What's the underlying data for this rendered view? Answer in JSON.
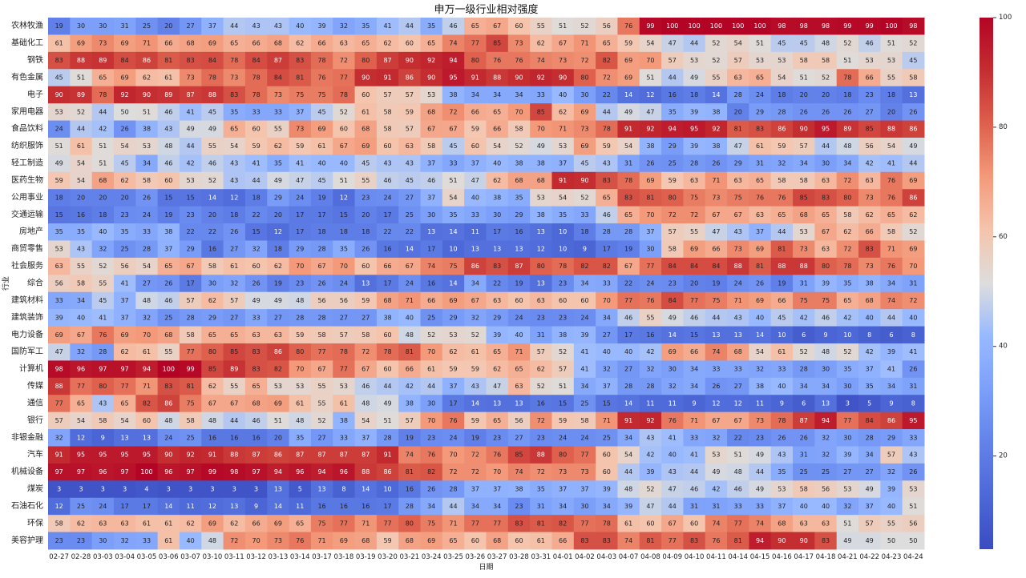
{
  "chart_data": {
    "type": "heatmap",
    "title": "申万一级行业相对强度",
    "xlabel": "日期",
    "ylabel": "行业",
    "colormap": "coolwarm",
    "vmin": 0,
    "vmax": 100,
    "colorbar_ticks": [
      20,
      40,
      60,
      80,
      100
    ],
    "x": [
      "02-27",
      "02-28",
      "03-03",
      "03-04",
      "03-05",
      "03-06",
      "03-07",
      "03-10",
      "03-11",
      "03-12",
      "03-13",
      "03-14",
      "03-17",
      "03-18",
      "03-19",
      "03-20",
      "03-21",
      "03-24",
      "03-25",
      "03-26",
      "03-27",
      "03-28",
      "03-31",
      "04-01",
      "04-02",
      "04-03",
      "04-07",
      "04-08",
      "04-09",
      "04-10",
      "04-11",
      "04-14",
      "04-15",
      "04-16",
      "04-17",
      "04-18",
      "04-21",
      "04-22",
      "04-23",
      "04-24"
    ],
    "y": [
      "农林牧渔",
      "基础化工",
      "钢铁",
      "有色金属",
      "电子",
      "家用电器",
      "食品饮料",
      "纺织服饰",
      "轻工制造",
      "医药生物",
      "公用事业",
      "交通运输",
      "房地产",
      "商贸零售",
      "社会服务",
      "综合",
      "建筑材料",
      "建筑装饰",
      "电力设备",
      "国防军工",
      "计算机",
      "传媒",
      "通信",
      "银行",
      "非银金融",
      "汽车",
      "机械设备",
      "煤炭",
      "石油石化",
      "环保",
      "美容护理"
    ],
    "values": [
      [
        19,
        30,
        30,
        31,
        25,
        20,
        27,
        37,
        44,
        43,
        43,
        40,
        39,
        32,
        35,
        41,
        44,
        35,
        46,
        65,
        67,
        60,
        55,
        51,
        52,
        56,
        76,
        99,
        100,
        100,
        100,
        100,
        100,
        98,
        98,
        98,
        99,
        99,
        100,
        98
      ],
      [
        61,
        69,
        73,
        69,
        71,
        66,
        68,
        69,
        65,
        66,
        68,
        62,
        66,
        63,
        65,
        62,
        60,
        65,
        74,
        77,
        85,
        73,
        62,
        67,
        71,
        65,
        59,
        54,
        47,
        44,
        52,
        54,
        51,
        45,
        45,
        48,
        52,
        46,
        51,
        52
      ],
      [
        83,
        88,
        89,
        84,
        86,
        81,
        83,
        84,
        78,
        84,
        87,
        83,
        78,
        72,
        80,
        87,
        90,
        92,
        94,
        80,
        76,
        76,
        74,
        73,
        72,
        82,
        69,
        70,
        57,
        53,
        52,
        57,
        53,
        53,
        58,
        58,
        51,
        53,
        53,
        45
      ],
      [
        45,
        51,
        65,
        69,
        62,
        61,
        73,
        78,
        73,
        78,
        84,
        81,
        76,
        77,
        90,
        91,
        86,
        90,
        95,
        91,
        88,
        90,
        92,
        90,
        80,
        72,
        69,
        51,
        44,
        49,
        55,
        63,
        65,
        54,
        51,
        52,
        78,
        66,
        55,
        58
      ],
      [
        90,
        89,
        78,
        92,
        90,
        89,
        87,
        88,
        83,
        78,
        73,
        75,
        75,
        78,
        60,
        57,
        57,
        53,
        38,
        34,
        34,
        34,
        33,
        40,
        30,
        22,
        14,
        12,
        16,
        18,
        14,
        28,
        24,
        18,
        20,
        20,
        18,
        23,
        18,
        13
      ],
      [
        53,
        52,
        44,
        50,
        51,
        46,
        41,
        45,
        35,
        33,
        33,
        37,
        45,
        52,
        61,
        58,
        59,
        68,
        72,
        66,
        65,
        70,
        85,
        62,
        69,
        44,
        49,
        47,
        35,
        39,
        38,
        20,
        29,
        28,
        26,
        26,
        26,
        27,
        20,
        26
      ],
      [
        24,
        44,
        42,
        26,
        38,
        43,
        49,
        49,
        65,
        60,
        55,
        73,
        69,
        60,
        68,
        58,
        57,
        67,
        67,
        59,
        66,
        58,
        70,
        71,
        73,
        78,
        91,
        92,
        94,
        95,
        92,
        81,
        83,
        86,
        90,
        95,
        89,
        85,
        88,
        86
      ],
      [
        51,
        61,
        51,
        54,
        53,
        48,
        44,
        55,
        54,
        59,
        62,
        59,
        61,
        67,
        69,
        60,
        63,
        58,
        45,
        60,
        54,
        52,
        49,
        53,
        69,
        59,
        54,
        38,
        29,
        39,
        38,
        47,
        61,
        59,
        57,
        44,
        48,
        56,
        54,
        49
      ],
      [
        49,
        54,
        51,
        45,
        34,
        46,
        42,
        46,
        43,
        41,
        35,
        41,
        40,
        40,
        45,
        43,
        43,
        37,
        33,
        37,
        40,
        38,
        38,
        37,
        45,
        43,
        31,
        26,
        25,
        28,
        26,
        29,
        31,
        32,
        34,
        30,
        34,
        42,
        41,
        44
      ],
      [
        59,
        54,
        68,
        62,
        58,
        60,
        53,
        52,
        43,
        44,
        49,
        47,
        45,
        51,
        55,
        46,
        45,
        46,
        51,
        47,
        62,
        68,
        68,
        91,
        90,
        83,
        78,
        69,
        59,
        63,
        71,
        63,
        65,
        58,
        58,
        63,
        72,
        63,
        76,
        69
      ],
      [
        18,
        20,
        20,
        20,
        26,
        15,
        15,
        14,
        12,
        18,
        29,
        24,
        19,
        12,
        23,
        24,
        27,
        37,
        54,
        40,
        38,
        35,
        53,
        54,
        52,
        65,
        83,
        81,
        80,
        75,
        73,
        75,
        76,
        76,
        85,
        83,
        80,
        73,
        76,
        86
      ],
      [
        15,
        16,
        18,
        23,
        24,
        19,
        23,
        20,
        18,
        22,
        20,
        17,
        17,
        15,
        20,
        17,
        25,
        30,
        35,
        33,
        30,
        29,
        38,
        35,
        33,
        46,
        65,
        70,
        72,
        72,
        67,
        67,
        63,
        65,
        68,
        65,
        58,
        62,
        65,
        62
      ],
      [
        35,
        35,
        40,
        35,
        33,
        38,
        22,
        22,
        26,
        15,
        12,
        17,
        18,
        18,
        18,
        22,
        22,
        13,
        14,
        11,
        17,
        16,
        13,
        10,
        18,
        28,
        28,
        37,
        57,
        55,
        47,
        43,
        37,
        44,
        53,
        67,
        62,
        66,
        58,
        52
      ],
      [
        53,
        43,
        32,
        25,
        28,
        37,
        29,
        16,
        27,
        32,
        18,
        29,
        28,
        35,
        26,
        16,
        14,
        17,
        10,
        13,
        13,
        13,
        12,
        10,
        9,
        17,
        19,
        30,
        58,
        69,
        66,
        73,
        69,
        81,
        73,
        63,
        72,
        83,
        71,
        69
      ],
      [
        63,
        55,
        52,
        56,
        54,
        65,
        67,
        58,
        61,
        60,
        62,
        70,
        67,
        70,
        60,
        66,
        67,
        74,
        75,
        86,
        83,
        87,
        80,
        78,
        82,
        82,
        67,
        77,
        84,
        84,
        84,
        88,
        81,
        88,
        88,
        80,
        78,
        73,
        76,
        70
      ],
      [
        56,
        58,
        55,
        41,
        27,
        26,
        17,
        30,
        32,
        26,
        19,
        23,
        26,
        24,
        13,
        17,
        24,
        16,
        14,
        34,
        22,
        19,
        13,
        23,
        34,
        33,
        22,
        24,
        23,
        20,
        19,
        24,
        26,
        19,
        31,
        39,
        35,
        38,
        34,
        31
      ],
      [
        33,
        34,
        45,
        37,
        48,
        46,
        57,
        62,
        57,
        49,
        49,
        48,
        56,
        56,
        59,
        68,
        71,
        66,
        69,
        67,
        63,
        60,
        63,
        60,
        60,
        70,
        77,
        76,
        84,
        77,
        75,
        71,
        69,
        66,
        75,
        75,
        65,
        68,
        74,
        72
      ],
      [
        39,
        40,
        41,
        37,
        32,
        25,
        28,
        29,
        27,
        33,
        27,
        28,
        28,
        27,
        27,
        38,
        40,
        25,
        29,
        32,
        29,
        24,
        23,
        23,
        24,
        34,
        46,
        55,
        49,
        46,
        44,
        43,
        40,
        45,
        42,
        46,
        42,
        40,
        44,
        40
      ],
      [
        69,
        67,
        76,
        69,
        70,
        68,
        58,
        65,
        65,
        63,
        63,
        59,
        58,
        57,
        58,
        60,
        48,
        52,
        53,
        52,
        39,
        40,
        31,
        38,
        39,
        27,
        17,
        16,
        14,
        15,
        13,
        13,
        14,
        10,
        6,
        9,
        10,
        8,
        6,
        8
      ],
      [
        47,
        32,
        28,
        62,
        61,
        55,
        77,
        80,
        85,
        83,
        86,
        80,
        77,
        78,
        72,
        78,
        81,
        70,
        62,
        61,
        65,
        71,
        57,
        52,
        41,
        40,
        40,
        42,
        69,
        66,
        74,
        68,
        54,
        61,
        52,
        48,
        52,
        42,
        39,
        41
      ],
      [
        98,
        96,
        97,
        97,
        94,
        100,
        99,
        85,
        89,
        83,
        82,
        70,
        67,
        77,
        67,
        60,
        66,
        61,
        59,
        59,
        62,
        65,
        62,
        57,
        41,
        32,
        27,
        32,
        30,
        34,
        33,
        33,
        32,
        33,
        28,
        30,
        35,
        37,
        41,
        26
      ],
      [
        88,
        77,
        80,
        77,
        71,
        83,
        81,
        62,
        55,
        65,
        53,
        53,
        55,
        53,
        46,
        44,
        42,
        44,
        37,
        43,
        47,
        63,
        52,
        51,
        34,
        37,
        28,
        28,
        32,
        34,
        26,
        27,
        38,
        40,
        34,
        34,
        30,
        35,
        34,
        31
      ],
      [
        77,
        65,
        43,
        65,
        82,
        86,
        75,
        67,
        67,
        68,
        69,
        61,
        55,
        61,
        48,
        49,
        38,
        30,
        17,
        14,
        13,
        13,
        16,
        15,
        25,
        15,
        14,
        11,
        11,
        9,
        12,
        12,
        11,
        9,
        6,
        13,
        3,
        5,
        9,
        8
      ],
      [
        57,
        54,
        58,
        54,
        60,
        48,
        58,
        48,
        44,
        46,
        51,
        48,
        52,
        38,
        54,
        51,
        57,
        70,
        76,
        59,
        65,
        56,
        72,
        59,
        58,
        71,
        91,
        92,
        76,
        71,
        67,
        67,
        73,
        78,
        87,
        94,
        77,
        84,
        86,
        95
      ],
      [
        32,
        12,
        9,
        13,
        13,
        24,
        25,
        16,
        16,
        16,
        20,
        35,
        27,
        33,
        37,
        28,
        19,
        23,
        24,
        19,
        23,
        27,
        23,
        24,
        24,
        25,
        34,
        43,
        41,
        33,
        32,
        22,
        23,
        26,
        26,
        32,
        30,
        28,
        29,
        33
      ],
      [
        91,
        95,
        95,
        95,
        95,
        90,
        92,
        91,
        88,
        87,
        86,
        87,
        87,
        87,
        87,
        91,
        74,
        76,
        70,
        72,
        76,
        85,
        88,
        80,
        77,
        60,
        54,
        42,
        40,
        41,
        53,
        51,
        49,
        43,
        31,
        32,
        39,
        34,
        57,
        43
      ],
      [
        97,
        97,
        96,
        97,
        100,
        96,
        97,
        99,
        98,
        97,
        94,
        96,
        94,
        96,
        88,
        86,
        81,
        82,
        72,
        72,
        70,
        74,
        72,
        73,
        73,
        60,
        44,
        39,
        43,
        44,
        49,
        48,
        44,
        35,
        25,
        25,
        27,
        27,
        32,
        26
      ],
      [
        3,
        3,
        3,
        3,
        4,
        3,
        3,
        3,
        3,
        3,
        13,
        5,
        13,
        8,
        14,
        10,
        16,
        26,
        28,
        37,
        37,
        38,
        35,
        37,
        37,
        39,
        48,
        52,
        47,
        46,
        42,
        46,
        49,
        53,
        58,
        56,
        53,
        49,
        39,
        53
      ],
      [
        12,
        25,
        24,
        17,
        17,
        14,
        11,
        12,
        13,
        9,
        14,
        11,
        16,
        16,
        16,
        17,
        28,
        34,
        44,
        34,
        34,
        23,
        31,
        34,
        30,
        34,
        39,
        47,
        44,
        31,
        31,
        33,
        33,
        37,
        40,
        40,
        32,
        37,
        40,
        51
      ],
      [
        58,
        62,
        63,
        63,
        61,
        61,
        62,
        69,
        62,
        66,
        69,
        65,
        75,
        77,
        71,
        77,
        80,
        75,
        71,
        77,
        77,
        83,
        81,
        82,
        77,
        78,
        61,
        60,
        67,
        60,
        74,
        77,
        74,
        68,
        63,
        63,
        51,
        57,
        55,
        56
      ],
      [
        23,
        23,
        30,
        32,
        33,
        61,
        40,
        48,
        72,
        70,
        73,
        76,
        71,
        69,
        68,
        59,
        68,
        69,
        65,
        60,
        68,
        60,
        61,
        66,
        83,
        83,
        74,
        81,
        77,
        83,
        76,
        81,
        94,
        90,
        90,
        83,
        49,
        49,
        50,
        50
      ]
    ]
  }
}
